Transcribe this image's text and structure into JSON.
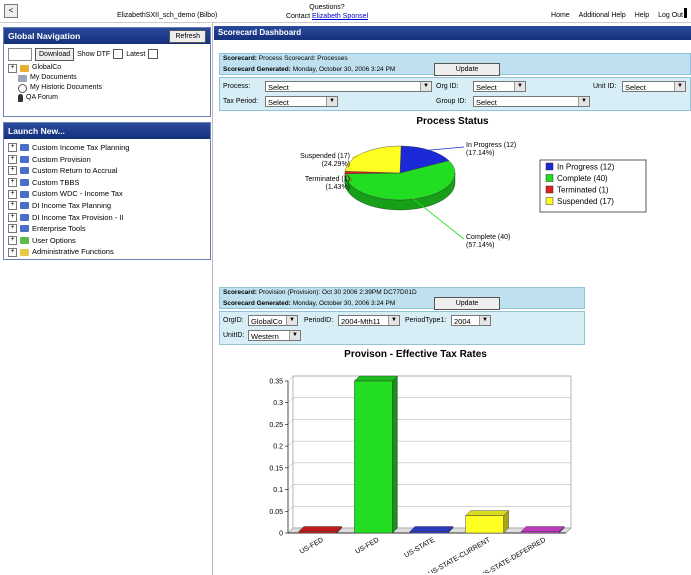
{
  "top": {
    "back_glyph": "<",
    "user": "ElizabethSXII_sch_demo (Bilbo)",
    "questions": "Questions?",
    "contact_label": "Contact",
    "contact_name": "Elizabeth Sponsel",
    "links": [
      "Home",
      "Additional Help",
      "Help",
      "Log Out"
    ]
  },
  "global_nav": {
    "title": "Global Navigation",
    "refresh": "Refresh",
    "download": "Download",
    "show_dtf": "Show DTF",
    "latest": "Latest",
    "tree": {
      "root": "GlobalCo",
      "items": [
        "My Documents",
        "My Historic Documents",
        "QA Forum"
      ]
    }
  },
  "launch": {
    "title": "Launch New...",
    "items": [
      {
        "label": "Custom Income Tax Planning",
        "color": "#4b6fc8"
      },
      {
        "label": "Custom Provision",
        "color": "#4b6fc8"
      },
      {
        "label": "Custom Return to Accrual",
        "color": "#4b6fc8"
      },
      {
        "label": "Custom TBBS",
        "color": "#4b6fc8"
      },
      {
        "label": "Custom WDC - Income Tax",
        "color": "#4b6fc8"
      },
      {
        "label": "DI Income Tax Planning",
        "color": "#4b6fc8"
      },
      {
        "label": "DI Income Tax Provision - II",
        "color": "#4b6fc8"
      },
      {
        "label": "Enterprise Tools",
        "color": "#4b6fc8"
      },
      {
        "label": "User Options",
        "color": "#5fb84a"
      },
      {
        "label": "Administrative Functions",
        "color": "#e8c64a"
      }
    ]
  },
  "dashboard": {
    "title": "Scorecard Dashboard",
    "sc1": {
      "scorecard_label": "Scorecard:",
      "scorecard_value": "Process Scorecard: Processes",
      "generated_label": "Scorecard Generated:",
      "generated_value": "Monday, October 30, 2006 3:24 PM",
      "update": "Update",
      "process_label": "Process:",
      "process_value": "Select",
      "orgid_label": "Org ID:",
      "orgid_value": "Select",
      "unitid_label": "Unit ID:",
      "unitid_value": "Select",
      "taxperiod_label": "Tax Period:",
      "taxperiod_value": "Select",
      "groupid_label": "Group ID:",
      "groupid_value": "Select"
    },
    "sc2": {
      "scorecard_label": "Scorecard:",
      "scorecard_value": "Provision (Provision): Oct 30 2006 2:39PM DC77D01D",
      "generated_label": "Scorecard Generated:",
      "generated_value": "Monday, October 30, 2006 3:24 PM",
      "update": "Update",
      "orgid_label": "OrgID:",
      "orgid_value": "GlobalCo",
      "periodid_label": "PeriodID:",
      "periodid_value": "2004-Mth11",
      "periodtype_label": "PeriodType1:",
      "periodtype_value": "2004",
      "unitid_label": "UnitID:",
      "unitid_value": "Western"
    }
  },
  "chart_data": [
    {
      "type": "pie",
      "title": "Process Status",
      "slices": [
        {
          "name": "In Progress",
          "value": 12,
          "count_label": "In Progress (12)",
          "pct_label": "(17.14%)",
          "legend": "In Progress (12)",
          "color": "#1a2ad6"
        },
        {
          "name": "Complete",
          "value": 40,
          "count_label": "Complete (40)",
          "pct_label": "(57.14%)",
          "legend": "Complete (40)",
          "color": "#22dd22"
        },
        {
          "name": "Terminated",
          "value": 1,
          "count_label": "Terminated (1)",
          "pct_label": "(1.43%)",
          "legend": "Terminated (1)",
          "color": "#e02020"
        },
        {
          "name": "Suspended",
          "value": 17,
          "count_label": "Suspended (17)",
          "pct_label": "(24.29%)",
          "legend": "Suspended (17)",
          "color": "#ffff22"
        }
      ],
      "legend_position": "right"
    },
    {
      "type": "bar",
      "title": "Provison - Effective Tax Rates",
      "categories": [
        "US-FED",
        "US-FED",
        "US-STATE",
        "US-STATE-CURRENT",
        "US-STATE-DEFERRED"
      ],
      "values": [
        0.001,
        0.35,
        0.001,
        0.04,
        0.001
      ],
      "colors": [
        "#e02020",
        "#22dd22",
        "#3344dd",
        "#ffff22",
        "#dd44dd"
      ],
      "ylim": [
        0,
        0.35
      ],
      "yticks": [
        "0",
        "0.05",
        "0.1",
        "0.15",
        "0.2",
        "0.25",
        "0.3",
        "0.35"
      ],
      "grid": true
    }
  ]
}
